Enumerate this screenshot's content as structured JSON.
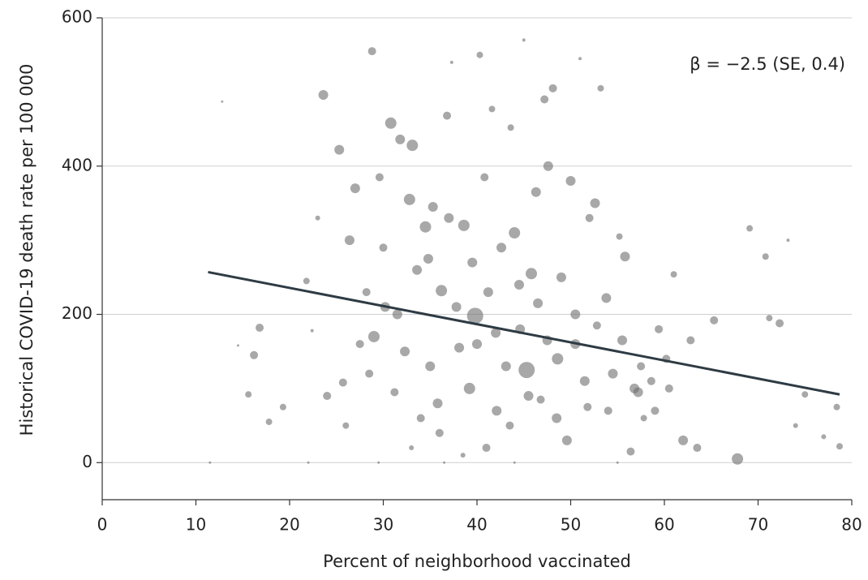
{
  "chart_data": {
    "type": "scatter",
    "x_label": "Percent of neighborhood vaccinated",
    "y_label": "Historical COVID-19 death rate per 100 000",
    "annotation": "β = −2.5 (SE, 0.4)",
    "xlim": [
      0,
      80
    ],
    "xticks": [
      0,
      10,
      20,
      30,
      40,
      50,
      60,
      70,
      80
    ],
    "ylim": [
      -50,
      600
    ],
    "yticks": [
      0,
      200,
      400,
      600
    ],
    "grid": true,
    "series": [
      {
        "color": "#6e6e6e",
        "x": [
          11.5,
          12.8,
          14.5,
          15.6,
          16.2,
          16.8,
          17.8,
          19.3,
          21.8,
          22.4,
          23.0,
          23.6,
          24.0,
          25.3,
          25.7,
          26.4,
          27.0,
          27.5,
          28.2,
          28.8,
          29.0,
          29.6,
          30.2,
          30.8,
          31.2,
          31.8,
          32.3,
          32.8,
          33.1,
          33.6,
          34.0,
          34.5,
          35.0,
          35.3,
          35.8,
          36.2,
          36.8,
          37.3,
          37.8,
          38.1,
          38.6,
          39.2,
          39.8,
          40.3,
          40.8,
          41.2,
          41.6,
          42.1,
          42.6,
          43.1,
          43.6,
          44.0,
          44.6,
          45.0,
          45.3,
          45.8,
          46.3,
          46.8,
          47.2,
          47.6,
          48.1,
          48.6,
          49.0,
          49.6,
          50.0,
          50.5,
          51.0,
          51.5,
          52.0,
          52.6,
          53.2,
          53.8,
          54.5,
          55.2,
          55.8,
          56.4,
          57.2,
          57.8,
          58.6,
          59.4,
          60.2,
          61.0,
          62.0,
          62.8,
          63.5,
          65.3,
          67.8,
          69.1,
          70.8,
          71.2,
          72.3,
          73.2,
          74.0,
          75.0,
          77.0,
          78.4,
          78.7,
          26.0,
          28.5,
          30.0,
          31.5,
          33.0,
          34.8,
          36.0,
          37.0,
          38.5,
          39.5,
          40.0,
          41.0,
          42.0,
          43.5,
          44.5,
          45.5,
          46.5,
          47.5,
          48.5,
          50.5,
          51.8,
          52.8,
          54.0,
          55.5,
          56.8,
          57.5,
          59.0,
          60.5,
          36.5,
          44.0,
          55.0,
          22.0,
          29.5
        ],
        "values": [
          0,
          487,
          158,
          92,
          145,
          182,
          55,
          75,
          245,
          178,
          330,
          496,
          90,
          422,
          108,
          300,
          370,
          160,
          230,
          555,
          170,
          385,
          210,
          458,
          95,
          436,
          150,
          355,
          428,
          260,
          60,
          318,
          130,
          345,
          80,
          232,
          468,
          540,
          210,
          155,
          320,
          100,
          198,
          550,
          385,
          230,
          477,
          70,
          290,
          130,
          452,
          310,
          180,
          570,
          125,
          255,
          365,
          85,
          490,
          400,
          505,
          140,
          250,
          30,
          380,
          160,
          545,
          110,
          330,
          350,
          505,
          222,
          120,
          305,
          278,
          15,
          95,
          60,
          110,
          180,
          140,
          254,
          30,
          165,
          20,
          192,
          5,
          316,
          278,
          195,
          188,
          300,
          50,
          92,
          35,
          75,
          22,
          50,
          120,
          290,
          200,
          20,
          275,
          40,
          330,
          10,
          270,
          160,
          20,
          175,
          50,
          240,
          90,
          215,
          165,
          60,
          200,
          75,
          185,
          70,
          165,
          100,
          130,
          70,
          100,
          0,
          0,
          0,
          0,
          0
        ],
        "sizes": [
          1.5,
          1.5,
          1.5,
          4,
          5,
          5,
          4,
          4,
          4,
          2,
          3,
          6,
          5,
          6,
          5,
          6,
          6,
          5,
          5,
          5,
          7,
          5,
          6,
          7,
          5,
          6,
          6,
          7,
          7,
          6,
          5,
          7,
          6,
          6,
          6,
          7,
          5,
          2,
          6,
          6,
          7,
          7,
          10,
          4,
          5,
          6,
          4,
          6,
          6,
          6,
          4,
          7,
          6,
          2,
          10,
          7,
          6,
          5,
          5,
          6,
          5,
          7,
          6,
          6,
          6,
          6,
          2,
          6,
          5,
          6,
          4,
          6,
          6,
          4,
          6,
          5,
          6,
          4,
          5,
          5,
          5,
          4,
          6,
          5,
          5,
          5,
          7,
          4,
          4,
          4,
          5,
          2,
          3,
          4,
          3,
          4,
          4,
          4,
          5,
          5,
          6,
          3,
          6,
          5,
          6,
          3,
          6,
          6,
          5,
          6,
          5,
          6,
          6,
          6,
          6,
          6,
          6,
          5,
          5,
          5,
          6,
          6,
          5,
          5,
          5,
          1.5,
          1.5,
          1.5,
          1.5,
          1.5
        ]
      }
    ],
    "trend_line": {
      "x": [
        11.3,
        78.7
      ],
      "y": [
        257,
        92
      ],
      "color": "#2e3b44"
    }
  }
}
